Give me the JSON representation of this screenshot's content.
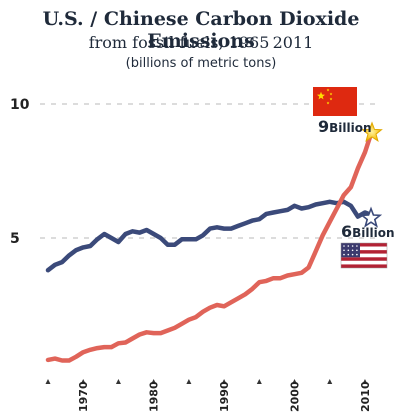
{
  "chart_data": {
    "type": "line",
    "title": "U.S. / Chinese Carbon Dioxide Emissions",
    "subtitle": "from fossil fuels, 1965 2011",
    "unit_label": "(billions of metric tons)",
    "xlim": [
      1965,
      2011
    ],
    "ylim": [
      0,
      11
    ],
    "yticks": [
      5,
      10
    ],
    "xtick_labels": [
      1970,
      1980,
      1990,
      2000,
      2010
    ],
    "xtick_markers": [
      1965,
      1975,
      1985,
      1995,
      2005
    ],
    "grid": true,
    "series": [
      {
        "key": "us",
        "color": "#3b4a7a",
        "x": [
          1965,
          1966,
          1967,
          1968,
          1969,
          1970,
          1971,
          1972,
          1973,
          1974,
          1975,
          1976,
          1977,
          1978,
          1979,
          1980,
          1981,
          1982,
          1983,
          1984,
          1985,
          1986,
          1987,
          1988,
          1989,
          1990,
          1991,
          1992,
          1993,
          1994,
          1995,
          1996,
          1997,
          1998,
          1999,
          2000,
          2001,
          2002,
          2003,
          2004,
          2005,
          2006,
          2007,
          2008,
          2009,
          2010,
          2011
        ],
        "values": [
          3.8,
          4.0,
          4.1,
          4.35,
          4.55,
          4.65,
          4.7,
          4.95,
          5.15,
          5.0,
          4.85,
          5.15,
          5.25,
          5.2,
          5.3,
          5.15,
          5.0,
          4.75,
          4.75,
          4.95,
          4.95,
          4.95,
          5.1,
          5.35,
          5.4,
          5.35,
          5.35,
          5.45,
          5.55,
          5.65,
          5.7,
          5.9,
          5.95,
          6.0,
          6.05,
          6.2,
          6.1,
          6.15,
          6.25,
          6.3,
          6.35,
          6.3,
          6.35,
          6.2,
          5.8,
          5.95,
          5.85
        ]
      },
      {
        "key": "china",
        "color": "#e06459",
        "x": [
          1965,
          1966,
          1967,
          1968,
          1969,
          1970,
          1971,
          1972,
          1973,
          1974,
          1975,
          1976,
          1977,
          1978,
          1979,
          1980,
          1981,
          1982,
          1983,
          1984,
          1985,
          1986,
          1987,
          1988,
          1989,
          1990,
          1991,
          1992,
          1993,
          1994,
          1995,
          1996,
          1997,
          1998,
          1999,
          2000,
          2001,
          2002,
          2003,
          2004,
          2005,
          2006,
          2007,
          2008,
          2009,
          2010,
          2011
        ],
        "values": [
          0.45,
          0.5,
          0.43,
          0.43,
          0.57,
          0.74,
          0.83,
          0.89,
          0.93,
          0.93,
          1.07,
          1.1,
          1.25,
          1.4,
          1.48,
          1.45,
          1.45,
          1.55,
          1.65,
          1.8,
          1.95,
          2.05,
          2.25,
          2.4,
          2.5,
          2.45,
          2.6,
          2.75,
          2.9,
          3.1,
          3.35,
          3.4,
          3.5,
          3.5,
          3.6,
          3.65,
          3.7,
          3.9,
          4.5,
          5.1,
          5.6,
          6.1,
          6.6,
          6.9,
          7.6,
          8.2,
          9.0
        ]
      }
    ],
    "annotations": [
      {
        "key": "china",
        "number": "9",
        "word": "Billion",
        "marker": "filled-star",
        "marker_color": "#f5c518",
        "flag": "china-flag"
      },
      {
        "key": "us",
        "number": "6",
        "word": "Billion",
        "marker": "outline-star",
        "marker_color": "#3b4a7a",
        "flag": "usa-flag"
      }
    ]
  }
}
